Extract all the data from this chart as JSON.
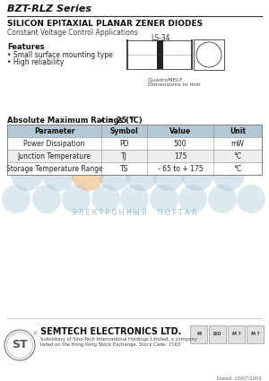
{
  "title": "BZT-RLZ Series",
  "subtitle": "SILICON EPITAXIAL PLANAR ZENER DIODES",
  "subtitle2": "Constant Voltage Control Applications",
  "features_title": "Features",
  "features": [
    "• Small surface mounting type",
    "• High reliability"
  ],
  "package": "LS-34",
  "package_note1": "QuadroMELF",
  "package_note2": "Dimensions in mm",
  "table_title": "Absolute Maximum Ratings (T",
  "table_title2": "a",
  "table_title3": " = 25 °C)",
  "table_headers": [
    "Parameter",
    "Symbol",
    "Value",
    "Unit"
  ],
  "table_rows": [
    [
      "Power Dissipation",
      "PD",
      "500",
      "mW"
    ],
    [
      "Junction Temperature",
      "TJ",
      "175",
      "°C"
    ],
    [
      "Storage Temperature Range",
      "TS",
      "- 65 to + 175",
      "°C"
    ]
  ],
  "company": "SEMTECH ELECTRONICS LTD.",
  "company_sub1": "Subsidiary of Sino-Tech International Holdings Limited, a company",
  "company_sub2": "listed on the Hong Kong Stock Exchange, Stock Code: 7163",
  "watermark_text": "Э Л Е К Т Р О Н Н Ы Й     П О Р Т А Л",
  "date_text": "Dated: 10/07/2006",
  "bg_color": "#ffffff",
  "watermark_bubble_color": "#adc6d8",
  "watermark_orange_color": "#e8a050",
  "watermark_text_color": "#8aaac0"
}
